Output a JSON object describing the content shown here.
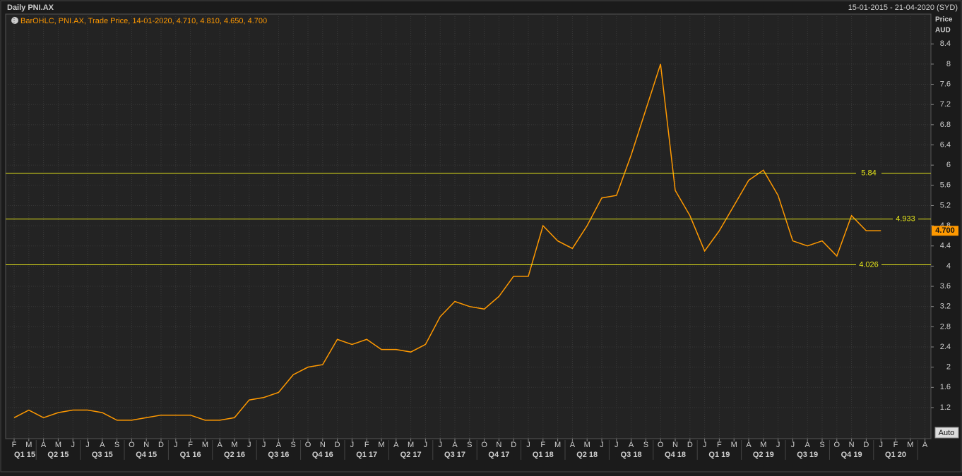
{
  "chart_data": {
    "type": "line",
    "title": "Daily PNI.AX",
    "date_range": "15-01-2015 - 21-04-2020 (SYD)",
    "legend_text": "BarOHLC, PNI.AX, Trade Price, 14-01-2020, 4.710, 4.810, 4.650, 4.700",
    "y_axis_label": [
      "Price",
      "AUD"
    ],
    "auto_button": "Auto",
    "categories": [
      "F",
      "M",
      "A",
      "M",
      "J",
      "J",
      "A",
      "S",
      "O",
      "N",
      "D",
      "J",
      "F",
      "M",
      "A",
      "M",
      "J",
      "J",
      "A",
      "S",
      "O",
      "N",
      "D",
      "J",
      "F",
      "M",
      "A",
      "M",
      "J",
      "J",
      "A",
      "S",
      "O",
      "N",
      "D",
      "J",
      "F",
      "M",
      "A",
      "M",
      "J",
      "J",
      "A",
      "S",
      "O",
      "N",
      "D",
      "J",
      "F",
      "M",
      "A",
      "M",
      "J",
      "J",
      "A",
      "S",
      "O",
      "N",
      "D",
      "J",
      "F",
      "M",
      "A"
    ],
    "quarters": [
      "Q1 15",
      "Q2 15",
      "Q3 15",
      "Q4 15",
      "Q1 16",
      "Q2 16",
      "Q3 16",
      "Q4 16",
      "Q1 17",
      "Q2 17",
      "Q3 17",
      "Q4 17",
      "Q1 18",
      "Q2 18",
      "Q3 18",
      "Q4 18",
      "Q1 19",
      "Q2 19",
      "Q3 19",
      "Q4 19",
      "Q1 20"
    ],
    "series": [
      {
        "name": "PNI.AX",
        "color": "#ff9900",
        "values": [
          1.0,
          1.15,
          1.0,
          1.1,
          1.15,
          1.15,
          1.1,
          0.95,
          0.95,
          1.0,
          1.05,
          1.05,
          1.05,
          0.95,
          0.95,
          1.0,
          1.35,
          1.4,
          1.5,
          1.85,
          2.0,
          2.05,
          2.55,
          2.45,
          2.55,
          2.35,
          2.35,
          2.3,
          2.45,
          3.0,
          3.3,
          3.2,
          3.15,
          3.4,
          3.8,
          3.8,
          4.8,
          4.5,
          4.35,
          4.8,
          5.35,
          5.4,
          6.2,
          7.1,
          8.0,
          5.5,
          5.0,
          4.3,
          4.7,
          5.2,
          5.7,
          5.9,
          5.4,
          4.5,
          4.4,
          4.5,
          4.2,
          5.0,
          4.7,
          4.7,
          null,
          null,
          null
        ]
      }
    ],
    "last_price": 4.7,
    "last_price_label": "4.700",
    "hlines": [
      5.84,
      4.933,
      4.026
    ],
    "hline_color": "#e6e619",
    "ylim": [
      0.585,
      8.99
    ],
    "yticks": [
      1.2,
      1.6,
      2,
      2.4,
      2.8,
      3.2,
      3.6,
      4,
      4.4,
      4.8,
      5.2,
      5.6,
      6,
      6.4,
      6.8,
      7.2,
      7.6,
      8,
      8.4
    ],
    "grid": true
  }
}
